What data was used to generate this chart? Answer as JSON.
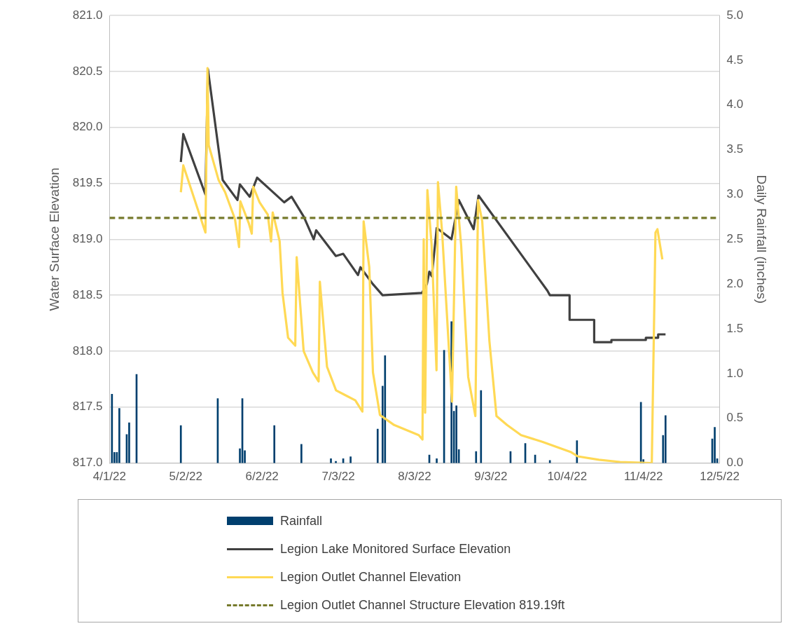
{
  "chart_data": {
    "type": "line",
    "ylabel": "Water Surface Elevation",
    "y2label": "Daily Rainfall (inches)",
    "xlim": [
      "2022-04-01",
      "2022-12-05"
    ],
    "xticks": [
      {
        "value": "2022-04-01",
        "label": "4/1/22"
      },
      {
        "value": "2022-05-02",
        "label": "5/2/22"
      },
      {
        "value": "2022-06-02",
        "label": "6/2/22"
      },
      {
        "value": "2022-07-03",
        "label": "7/3/22"
      },
      {
        "value": "2022-08-03",
        "label": "8/3/22"
      },
      {
        "value": "2022-09-03",
        "label": "9/3/22"
      },
      {
        "value": "2022-10-04",
        "label": "10/4/22"
      },
      {
        "value": "2022-11-04",
        "label": "11/4/22"
      },
      {
        "value": "2022-12-05",
        "label": "12/5/22"
      }
    ],
    "ylim": [
      817,
      821
    ],
    "yticks": [
      {
        "value": 817,
        "label": "817.0"
      },
      {
        "value": 817.5,
        "label": "817.5"
      },
      {
        "value": 818,
        "label": "818.0"
      },
      {
        "value": 818.5,
        "label": "818.5"
      },
      {
        "value": 819,
        "label": "819.0"
      },
      {
        "value": 819.5,
        "label": "819.5"
      },
      {
        "value": 820,
        "label": "820.0"
      },
      {
        "value": 820.5,
        "label": "820.5"
      },
      {
        "value": 821,
        "label": "821.0"
      }
    ],
    "y2lim": [
      0,
      5
    ],
    "y2ticks": [
      {
        "value": 0,
        "label": "0.0"
      },
      {
        "value": 0.5,
        "label": "0.5"
      },
      {
        "value": 1,
        "label": "1.0"
      },
      {
        "value": 1.5,
        "label": "1.5"
      },
      {
        "value": 2,
        "label": "2.0"
      },
      {
        "value": 2.5,
        "label": "2.5"
      },
      {
        "value": 3,
        "label": "3.0"
      },
      {
        "value": 3.5,
        "label": "3.5"
      },
      {
        "value": 4,
        "label": "4.0"
      },
      {
        "value": 4.5,
        "label": "4.5"
      },
      {
        "value": 5,
        "label": "5.0"
      }
    ],
    "grid": "y",
    "legend": "bottom",
    "marker": "none",
    "series": [
      {
        "name": "Rainfall",
        "type": "bar",
        "axis": "y2",
        "color": "#003f6e",
        "x": [
          "2022-04-02",
          "2022-04-03",
          "2022-04-04",
          "2022-04-05",
          "2022-04-08",
          "2022-04-09",
          "2022-04-12",
          "2022-04-30",
          "2022-05-15",
          "2022-05-24",
          "2022-05-25",
          "2022-05-26",
          "2022-06-07",
          "2022-06-18",
          "2022-06-30",
          "2022-07-02",
          "2022-07-05",
          "2022-07-08",
          "2022-07-19",
          "2022-07-21",
          "2022-07-22",
          "2022-08-09",
          "2022-08-12",
          "2022-08-15",
          "2022-08-18",
          "2022-08-19",
          "2022-08-20",
          "2022-08-21",
          "2022-08-28",
          "2022-08-30",
          "2022-09-11",
          "2022-09-17",
          "2022-09-21",
          "2022-09-27",
          "2022-10-08",
          "2022-11-03",
          "2022-11-04",
          "2022-11-12",
          "2022-11-13",
          "2022-12-02",
          "2022-12-03",
          "2022-12-04"
        ],
        "values": [
          0.77,
          0.12,
          0.12,
          0.61,
          0.32,
          0.45,
          0.99,
          0.42,
          0.72,
          0.16,
          0.72,
          0.14,
          0.42,
          0.21,
          0.05,
          0.02,
          0.05,
          0.07,
          0.38,
          0.86,
          1.2,
          0.09,
          0.05,
          1.26,
          1.58,
          0.58,
          0.64,
          0.15,
          0.13,
          0.81,
          0.13,
          0.22,
          0.09,
          0.03,
          0.25,
          0.68,
          0.04,
          0.31,
          0.53,
          0.27,
          0.4,
          0.05
        ]
      },
      {
        "name": "Legion Lake Monitored Surface Elevation",
        "color": "#404040",
        "x": [
          "2022-04-30",
          "2022-05-01",
          "2022-05-10",
          "2022-05-11",
          "2022-05-17",
          "2022-05-23",
          "2022-05-24",
          "2022-05-28",
          "2022-05-31",
          "2022-06-06",
          "2022-06-11",
          "2022-06-14",
          "2022-06-19",
          "2022-06-23",
          "2022-06-24",
          "2022-07-02",
          "2022-07-05",
          "2022-07-11",
          "2022-07-12",
          "2022-07-17",
          "2022-07-21",
          "2022-08-06",
          "2022-08-08",
          "2022-08-09",
          "2022-08-10",
          "2022-08-12",
          "2022-08-18",
          "2022-08-21",
          "2022-08-27",
          "2022-08-29",
          "2022-09-26",
          "2022-09-27",
          "2022-10-05",
          "2022-10-05",
          "2022-10-15",
          "2022-10-15",
          "2022-10-22",
          "2022-10-22",
          "2022-11-05",
          "2022-11-05",
          "2022-11-10",
          "2022-11-10",
          "2022-11-13"
        ],
        "values": [
          819.69,
          819.94,
          819.4,
          820.52,
          819.53,
          819.35,
          819.49,
          819.38,
          819.55,
          819.43,
          819.33,
          819.38,
          819.2,
          819.0,
          819.08,
          818.85,
          818.87,
          818.68,
          818.75,
          818.6,
          818.5,
          818.52,
          818.6,
          818.71,
          818.67,
          819.1,
          819.0,
          819.35,
          819.09,
          819.39,
          818.54,
          818.5,
          818.5,
          818.28,
          818.28,
          818.08,
          818.08,
          818.1,
          818.1,
          818.12,
          818.12,
          818.15,
          818.15
        ]
      },
      {
        "name": "Legion Outlet Channel Elevation",
        "color": "#ffd955",
        "x": [
          "2022-04-30",
          "2022-05-01",
          "2022-05-10",
          "2022-05-10T20:00",
          "2022-05-11T08:00",
          "2022-05-15T08:00",
          "2022-05-18",
          "2022-05-22",
          "2022-05-23T16:00",
          "2022-05-24T04:00",
          "2022-05-27T16:00",
          "2022-05-28T20:00",
          "2022-05-29T10:00",
          "2022-06-01",
          "2022-06-04T08:00",
          "2022-06-05T16:00",
          "2022-06-06T08:00",
          "2022-06-09T04:00",
          "2022-06-10T08:00",
          "2022-06-12T14:00",
          "2022-06-15T12:00",
          "2022-06-16T02:00",
          "2022-06-18T22:00",
          "2022-06-22T16:00",
          "2022-06-25",
          "2022-06-25T12:00",
          "2022-06-28T10:00",
          "2022-07-02T02:00",
          "2022-07-05T14:00",
          "2022-07-09T22:00",
          "2022-07-12T19:00",
          "2022-07-13T07:00",
          "2022-07-15T14:00",
          "2022-07-17T02:00",
          "2022-07-19T22:00",
          "2022-07-25T17:00",
          "2022-08-04T17:00",
          "2022-08-06T05:00",
          "2022-08-06T17:00",
          "2022-08-07T07:00",
          "2022-08-08T05:00",
          "2022-08-09T22:00",
          "2022-08-11T22:00",
          "2022-08-12T12:00",
          "2022-08-14T05:00",
          "2022-08-18T05:00",
          "2022-08-19T22:00",
          "2022-08-21T22:00",
          "2022-08-24T19:00",
          "2022-08-27T17:00",
          "2022-08-28T19:00",
          "2022-08-30T12:00",
          "2022-09-02T10:00",
          "2022-09-05T07:00",
          "2022-09-09T14:00",
          "2022-09-15T07:00",
          "2022-09-23T22:00",
          "2022-10-05T10:00",
          "2022-10-08T07:00",
          "2022-10-16T22:00",
          "2022-10-25T12:00",
          "2022-11-07T10:00",
          "2022-11-08T22:00",
          "2022-11-09T17:00",
          "2022-11-11T17:00"
        ],
        "values": [
          819.42,
          819.66,
          819.06,
          820.53,
          819.84,
          819.53,
          819.42,
          819.18,
          818.93,
          819.34,
          819.14,
          819.05,
          819.47,
          819.33,
          819.22,
          818.98,
          819.24,
          818.98,
          818.52,
          818.12,
          818.05,
          818.84,
          818.0,
          817.81,
          817.73,
          818.62,
          817.86,
          817.65,
          817.61,
          817.56,
          817.46,
          819.16,
          818.75,
          817.81,
          817.43,
          817.34,
          817.25,
          817.21,
          819.0,
          817.45,
          819.44,
          818.95,
          817.83,
          819.51,
          819.06,
          817.55,
          819.47,
          818.95,
          817.77,
          817.42,
          819.35,
          819.16,
          818.09,
          817.42,
          817.34,
          817.25,
          817.19,
          817.1,
          817.06,
          817.03,
          817.01,
          817.0,
          819.06,
          819.09,
          818.82
        ]
      }
    ],
    "ref_lines": [
      {
        "axis": "y",
        "value": 819.19,
        "label": "Legion Outlet Channel Structure Elevation 819.19ft",
        "color": "#767a2c",
        "line_style": "dashed"
      }
    ]
  }
}
